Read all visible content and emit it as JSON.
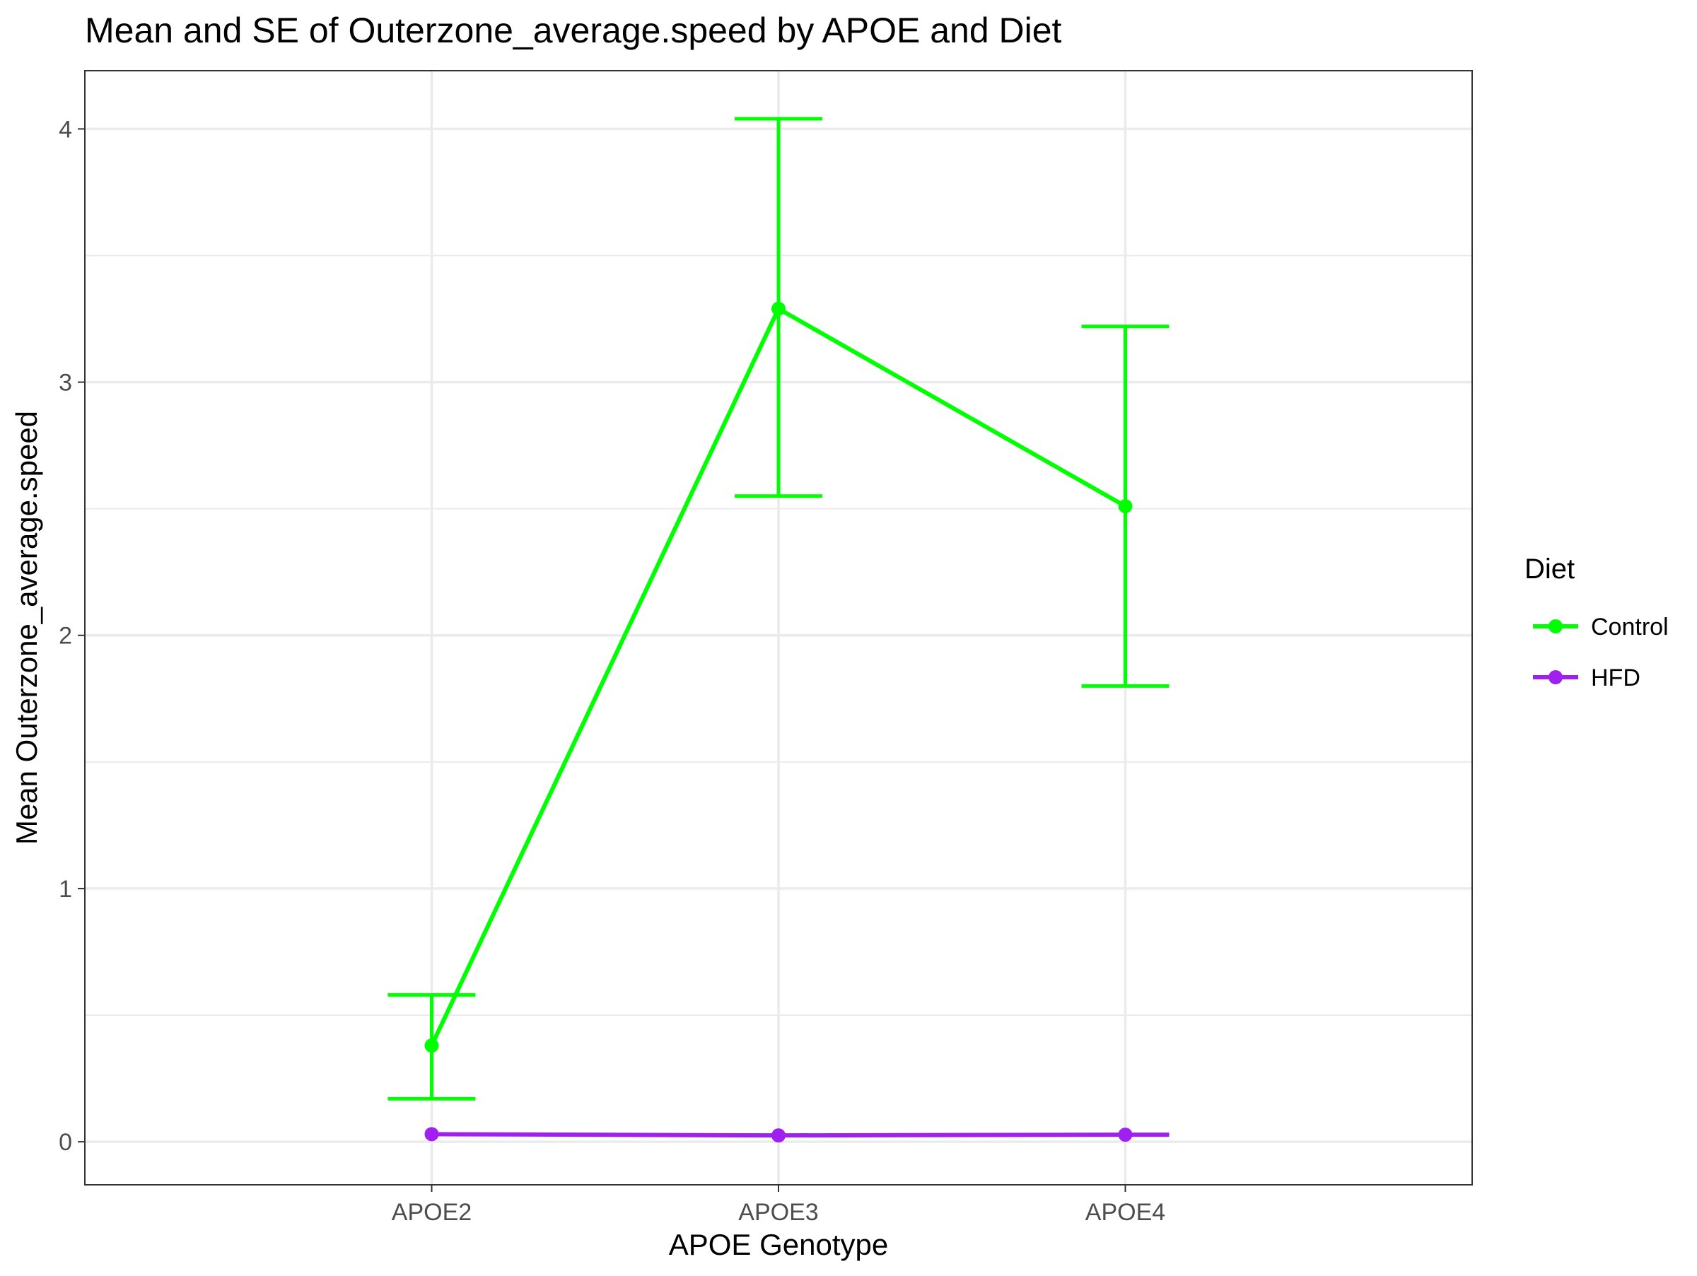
{
  "chart_data": {
    "type": "line",
    "title": "Mean and SE of Outerzone_average.speed by APOE and Diet",
    "xlabel": "APOE Genotype",
    "ylabel": "Mean Outerzone_average.speed",
    "categories": [
      "APOE2",
      "APOE3",
      "APOE4"
    ],
    "y_ticks": [
      0,
      1,
      2,
      3,
      4
    ],
    "y_tick_labels": [
      "0",
      "1",
      "2",
      "3",
      "4"
    ],
    "ylim": [
      -0.17,
      4.23
    ],
    "grid": true,
    "legend": {
      "title": "Diet",
      "placement": "right"
    },
    "series": [
      {
        "name": "Control",
        "color": "#00ff00",
        "values": [
          0.38,
          3.29,
          2.51
        ],
        "se_lower": [
          0.17,
          2.55,
          1.8
        ],
        "se_upper": [
          0.58,
          4.04,
          3.22
        ]
      },
      {
        "name": "HFD",
        "color": "#a020f0",
        "values": [
          0.03,
          0.025,
          0.028
        ]
      }
    ]
  }
}
